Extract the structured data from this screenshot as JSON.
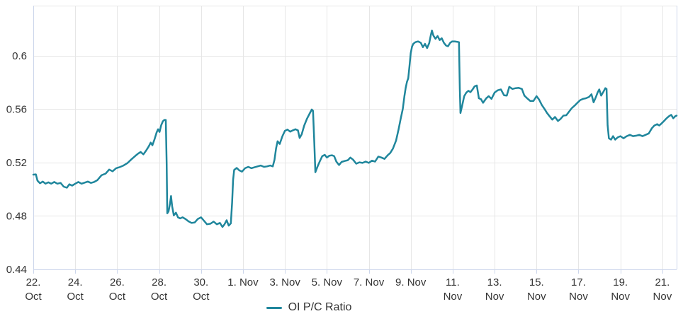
{
  "chart_data": {
    "type": "line",
    "title": "",
    "xlabel": "",
    "ylabel": "",
    "grid": true,
    "legend_position": "bottom-center",
    "x_unit": "days since 22 Oct",
    "x_start_label": "22. Oct",
    "x_end_label": "21. Nov",
    "xlim_days": [
      0,
      30.68
    ],
    "ylim": [
      0.44,
      0.6376
    ],
    "y_ticks": [
      {
        "value": 0.44,
        "label": "0.44"
      },
      {
        "value": 0.48,
        "label": "0.48"
      },
      {
        "value": 0.52,
        "label": "0.52"
      },
      {
        "value": 0.56,
        "label": "0.56"
      },
      {
        "value": 0.6,
        "label": "0.6"
      }
    ],
    "x_ticks": [
      {
        "day": 0,
        "label": "22.\nOct"
      },
      {
        "day": 2,
        "label": "24.\nOct"
      },
      {
        "day": 4,
        "label": "26.\nOct"
      },
      {
        "day": 6,
        "label": "28.\nOct"
      },
      {
        "day": 8,
        "label": "30.\nOct"
      },
      {
        "day": 10,
        "label": "1. Nov"
      },
      {
        "day": 12,
        "label": "3. Nov"
      },
      {
        "day": 14,
        "label": "5. Nov"
      },
      {
        "day": 16,
        "label": "7. Nov"
      },
      {
        "day": 18,
        "label": "9. Nov"
      },
      {
        "day": 20,
        "label": "11.\nNov"
      },
      {
        "day": 22,
        "label": "13.\nNov"
      },
      {
        "day": 24,
        "label": "15.\nNov"
      },
      {
        "day": 26,
        "label": "17.\nNov"
      },
      {
        "day": 28,
        "label": "19.\nNov"
      },
      {
        "day": 30,
        "label": "21.\nNov"
      }
    ],
    "colors": {
      "line": "#1f869c",
      "axis": "#ccd6eb",
      "grid": "#e6e6e6",
      "text": "#333333",
      "background": "#ffffff"
    },
    "series": [
      {
        "name": "OI P/C Ratio",
        "points": [
          [
            0,
            0.511
          ],
          [
            0.12,
            0.5112
          ],
          [
            0.2,
            0.5065
          ],
          [
            0.32,
            0.5045
          ],
          [
            0.45,
            0.5058
          ],
          [
            0.58,
            0.5042
          ],
          [
            0.72,
            0.5052
          ],
          [
            0.85,
            0.5042
          ],
          [
            1,
            0.5055
          ],
          [
            1.15,
            0.5042
          ],
          [
            1.3,
            0.5048
          ],
          [
            1.45,
            0.502
          ],
          [
            1.6,
            0.5012
          ],
          [
            1.72,
            0.5038
          ],
          [
            1.85,
            0.5028
          ],
          [
            2,
            0.5042
          ],
          [
            2.15,
            0.5055
          ],
          [
            2.3,
            0.5042
          ],
          [
            2.45,
            0.505
          ],
          [
            2.6,
            0.5058
          ],
          [
            2.75,
            0.5048
          ],
          [
            2.9,
            0.5055
          ],
          [
            3.05,
            0.5068
          ],
          [
            3.25,
            0.5105
          ],
          [
            3.45,
            0.5118
          ],
          [
            3.62,
            0.5148
          ],
          [
            3.78,
            0.5135
          ],
          [
            3.95,
            0.5158
          ],
          [
            4.1,
            0.5165
          ],
          [
            4.3,
            0.5178
          ],
          [
            4.5,
            0.5198
          ],
          [
            4.68,
            0.5225
          ],
          [
            4.85,
            0.5248
          ],
          [
            5,
            0.5268
          ],
          [
            5.12,
            0.528
          ],
          [
            5.25,
            0.5262
          ],
          [
            5.38,
            0.529
          ],
          [
            5.5,
            0.532
          ],
          [
            5.6,
            0.535
          ],
          [
            5.68,
            0.533
          ],
          [
            5.78,
            0.5375
          ],
          [
            5.88,
            0.5425
          ],
          [
            5.95,
            0.545
          ],
          [
            6.02,
            0.543
          ],
          [
            6.1,
            0.548
          ],
          [
            6.18,
            0.551
          ],
          [
            6.25,
            0.552
          ],
          [
            6.32,
            0.552
          ],
          [
            6.36,
            0.52
          ],
          [
            6.39,
            0.482
          ],
          [
            6.45,
            0.4835
          ],
          [
            6.52,
            0.4895
          ],
          [
            6.57,
            0.495
          ],
          [
            6.62,
            0.4875
          ],
          [
            6.7,
            0.4805
          ],
          [
            6.8,
            0.4825
          ],
          [
            6.9,
            0.479
          ],
          [
            7,
            0.4782
          ],
          [
            7.12,
            0.479
          ],
          [
            7.25,
            0.4778
          ],
          [
            7.4,
            0.476
          ],
          [
            7.55,
            0.4748
          ],
          [
            7.7,
            0.4752
          ],
          [
            7.85,
            0.4778
          ],
          [
            8,
            0.479
          ],
          [
            8.12,
            0.4768
          ],
          [
            8.28,
            0.4738
          ],
          [
            8.45,
            0.4742
          ],
          [
            8.6,
            0.4758
          ],
          [
            8.75,
            0.4738
          ],
          [
            8.9,
            0.4748
          ],
          [
            9.02,
            0.4718
          ],
          [
            9.12,
            0.4738
          ],
          [
            9.22,
            0.4768
          ],
          [
            9.32,
            0.4728
          ],
          [
            9.42,
            0.4745
          ],
          [
            9.48,
            0.49
          ],
          [
            9.53,
            0.507
          ],
          [
            9.58,
            0.5145
          ],
          [
            9.7,
            0.516
          ],
          [
            9.82,
            0.5142
          ],
          [
            9.95,
            0.5132
          ],
          [
            10.1,
            0.5158
          ],
          [
            10.25,
            0.5168
          ],
          [
            10.4,
            0.5158
          ],
          [
            10.55,
            0.5165
          ],
          [
            10.7,
            0.5172
          ],
          [
            10.85,
            0.5178
          ],
          [
            11,
            0.5168
          ],
          [
            11.15,
            0.5172
          ],
          [
            11.3,
            0.5178
          ],
          [
            11.42,
            0.5172
          ],
          [
            11.5,
            0.522
          ],
          [
            11.58,
            0.5308
          ],
          [
            11.65,
            0.536
          ],
          [
            11.75,
            0.534
          ],
          [
            11.88,
            0.5398
          ],
          [
            12,
            0.5438
          ],
          [
            12.12,
            0.5448
          ],
          [
            12.25,
            0.5432
          ],
          [
            12.38,
            0.5442
          ],
          [
            12.5,
            0.545
          ],
          [
            12.62,
            0.5442
          ],
          [
            12.7,
            0.5385
          ],
          [
            12.8,
            0.5412
          ],
          [
            12.92,
            0.5478
          ],
          [
            13.05,
            0.5528
          ],
          [
            13.18,
            0.5568
          ],
          [
            13.28,
            0.5598
          ],
          [
            13.34,
            0.5588
          ],
          [
            13.4,
            0.535
          ],
          [
            13.45,
            0.5128
          ],
          [
            13.55,
            0.5168
          ],
          [
            13.65,
            0.5205
          ],
          [
            13.78,
            0.5248
          ],
          [
            13.9,
            0.5258
          ],
          [
            14,
            0.5238
          ],
          [
            14.12,
            0.5252
          ],
          [
            14.25,
            0.5255
          ],
          [
            14.35,
            0.5248
          ],
          [
            14.45,
            0.5208
          ],
          [
            14.58,
            0.5182
          ],
          [
            14.7,
            0.5205
          ],
          [
            14.85,
            0.5212
          ],
          [
            15,
            0.5218
          ],
          [
            15.12,
            0.5238
          ],
          [
            15.25,
            0.5222
          ],
          [
            15.4,
            0.5192
          ],
          [
            15.55,
            0.5202
          ],
          [
            15.7,
            0.5198
          ],
          [
            15.85,
            0.5208
          ],
          [
            16,
            0.5198
          ],
          [
            16.15,
            0.5215
          ],
          [
            16.3,
            0.5208
          ],
          [
            16.45,
            0.5245
          ],
          [
            16.6,
            0.5238
          ],
          [
            16.75,
            0.5228
          ],
          [
            16.9,
            0.5255
          ],
          [
            17.02,
            0.5272
          ],
          [
            17.15,
            0.5305
          ],
          [
            17.3,
            0.5365
          ],
          [
            17.42,
            0.545
          ],
          [
            17.52,
            0.5528
          ],
          [
            17.62,
            0.5602
          ],
          [
            17.7,
            0.5698
          ],
          [
            17.76,
            0.576
          ],
          [
            17.82,
            0.5805
          ],
          [
            17.88,
            0.5832
          ],
          [
            17.94,
            0.592
          ],
          [
            18,
            0.602
          ],
          [
            18.06,
            0.6068
          ],
          [
            18.12,
            0.609
          ],
          [
            18.22,
            0.6102
          ],
          [
            18.35,
            0.6108
          ],
          [
            18.48,
            0.6098
          ],
          [
            18.58,
            0.6065
          ],
          [
            18.68,
            0.609
          ],
          [
            18.78,
            0.6058
          ],
          [
            18.88,
            0.6095
          ],
          [
            18.95,
            0.6148
          ],
          [
            19.01,
            0.619
          ],
          [
            19.08,
            0.6152
          ],
          [
            19.18,
            0.6128
          ],
          [
            19.28,
            0.6148
          ],
          [
            19.38,
            0.6118
          ],
          [
            19.48,
            0.6132
          ],
          [
            19.58,
            0.6098
          ],
          [
            19.68,
            0.6078
          ],
          [
            19.78,
            0.6072
          ],
          [
            19.88,
            0.6098
          ],
          [
            19.98,
            0.6108
          ],
          [
            20.1,
            0.6108
          ],
          [
            20.22,
            0.6105
          ],
          [
            20.3,
            0.6102
          ],
          [
            20.34,
            0.575
          ],
          [
            20.37,
            0.5572
          ],
          [
            20.45,
            0.5625
          ],
          [
            20.55,
            0.5698
          ],
          [
            20.65,
            0.5725
          ],
          [
            20.75,
            0.5738
          ],
          [
            20.85,
            0.5728
          ],
          [
            20.95,
            0.5748
          ],
          [
            21.05,
            0.5772
          ],
          [
            21.15,
            0.5778
          ],
          [
            21.25,
            0.5682
          ],
          [
            21.35,
            0.5675
          ],
          [
            21.45,
            0.5648
          ],
          [
            21.6,
            0.5682
          ],
          [
            21.72,
            0.5698
          ],
          [
            21.85,
            0.5678
          ],
          [
            22,
            0.5725
          ],
          [
            22.15,
            0.5742
          ],
          [
            22.3,
            0.5748
          ],
          [
            22.45,
            0.5705
          ],
          [
            22.58,
            0.5702
          ],
          [
            22.7,
            0.5768
          ],
          [
            22.85,
            0.5752
          ],
          [
            23,
            0.5758
          ],
          [
            23.15,
            0.576
          ],
          [
            23.3,
            0.5752
          ],
          [
            23.42,
            0.5702
          ],
          [
            23.55,
            0.5682
          ],
          [
            23.7,
            0.5662
          ],
          [
            23.85,
            0.5662
          ],
          [
            24,
            0.5698
          ],
          [
            24.12,
            0.5672
          ],
          [
            24.25,
            0.5632
          ],
          [
            24.38,
            0.5602
          ],
          [
            24.5,
            0.5572
          ],
          [
            24.62,
            0.5548
          ],
          [
            24.75,
            0.5522
          ],
          [
            24.88,
            0.5542
          ],
          [
            25.02,
            0.5512
          ],
          [
            25.15,
            0.5528
          ],
          [
            25.28,
            0.5552
          ],
          [
            25.42,
            0.5555
          ],
          [
            25.55,
            0.5582
          ],
          [
            25.68,
            0.5608
          ],
          [
            25.82,
            0.5628
          ],
          [
            25.95,
            0.5648
          ],
          [
            26.08,
            0.5668
          ],
          [
            26.22,
            0.5678
          ],
          [
            26.35,
            0.5682
          ],
          [
            26.5,
            0.5692
          ],
          [
            26.62,
            0.5712
          ],
          [
            26.72,
            0.5652
          ],
          [
            26.82,
            0.5688
          ],
          [
            26.92,
            0.5728
          ],
          [
            26.99,
            0.5748
          ],
          [
            27.08,
            0.5702
          ],
          [
            27.18,
            0.5728
          ],
          [
            27.28,
            0.5758
          ],
          [
            27.34,
            0.5752
          ],
          [
            27.39,
            0.548
          ],
          [
            27.45,
            0.5382
          ],
          [
            27.55,
            0.5372
          ],
          [
            27.65,
            0.5398
          ],
          [
            27.75,
            0.5372
          ],
          [
            27.88,
            0.539
          ],
          [
            28,
            0.5398
          ],
          [
            28.15,
            0.5382
          ],
          [
            28.3,
            0.5398
          ],
          [
            28.45,
            0.5408
          ],
          [
            28.6,
            0.5398
          ],
          [
            28.75,
            0.5402
          ],
          [
            28.9,
            0.5408
          ],
          [
            29.05,
            0.5398
          ],
          [
            29.2,
            0.5408
          ],
          [
            29.35,
            0.5418
          ],
          [
            29.5,
            0.5458
          ],
          [
            29.62,
            0.5478
          ],
          [
            29.75,
            0.5488
          ],
          [
            29.85,
            0.5478
          ],
          [
            29.95,
            0.5492
          ],
          [
            30.08,
            0.5512
          ],
          [
            30.2,
            0.5532
          ],
          [
            30.32,
            0.5548
          ],
          [
            30.42,
            0.5558
          ],
          [
            30.52,
            0.5532
          ],
          [
            30.62,
            0.5548
          ],
          [
            30.68,
            0.5552
          ]
        ]
      }
    ]
  },
  "legend": {
    "label": "OI P/C Ratio"
  }
}
